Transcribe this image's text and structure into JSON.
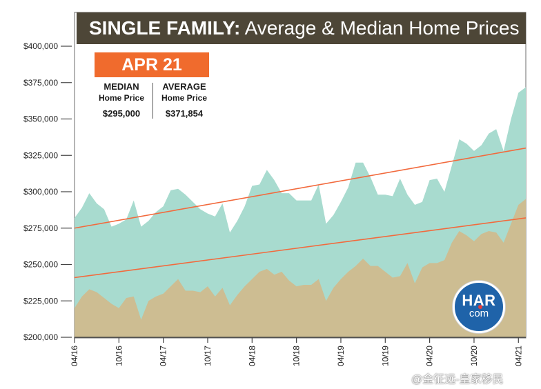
{
  "title": {
    "bold_part": "SINGLE FAMILY:",
    "light_part": " Average & Median Home Prices"
  },
  "badge": "APR 21",
  "stats": {
    "median": {
      "label": "MEDIAN",
      "sublabel": "Home Price",
      "value": "$295,000"
    },
    "average": {
      "label": "AVERAGE",
      "sublabel": "Home Price",
      "value": "$371,854"
    }
  },
  "logo": {
    "top": "HAR",
    "bottom": "com"
  },
  "watermark": "@金征远-皇家移民",
  "colors": {
    "average_area": "#a8dbcf",
    "median_area": "#cdbd92",
    "trend_line": "#f26a3d",
    "title_bg": "#4d4637",
    "badge_bg": "#f06b2d",
    "axis": "#444444"
  },
  "chart_data": {
    "type": "area",
    "title": "SINGLE FAMILY: Average & Median Home Prices",
    "xlabel": "",
    "ylabel": "",
    "ylim": [
      200000,
      400000
    ],
    "yticks": [
      200000,
      225000,
      250000,
      275000,
      300000,
      325000,
      350000,
      375000,
      400000
    ],
    "ytick_labels": [
      "$200,000",
      "$225,000",
      "$250,000",
      "$275,000",
      "$300,000",
      "$325,000",
      "$350,000",
      "$375,000",
      "$400,000"
    ],
    "x_tick_labels": [
      "04/16",
      "10/16",
      "04/17",
      "10/17",
      "04/18",
      "10/18",
      "04/19",
      "10/19",
      "04/20",
      "10/20",
      "04/21"
    ],
    "x_tick_index": [
      0,
      6,
      12,
      18,
      24,
      30,
      36,
      42,
      48,
      54,
      60
    ],
    "grid": false,
    "series": [
      {
        "key": "average",
        "values": [
          282000,
          289000,
          299000,
          292000,
          288000,
          276000,
          278000,
          281000,
          294000,
          276000,
          280000,
          286000,
          290000,
          301000,
          302000,
          298000,
          293000,
          288000,
          285000,
          283000,
          292000,
          272000,
          280000,
          290000,
          304000,
          305000,
          315000,
          308000,
          299000,
          299000,
          294000,
          294000,
          294000,
          305000,
          278000,
          284000,
          293000,
          303000,
          320000,
          320000,
          310000,
          298000,
          298000,
          297000,
          309000,
          298000,
          291000,
          293000,
          308000,
          309000,
          300000,
          318000,
          336000,
          333000,
          328000,
          332000,
          340000,
          343000,
          328000,
          350000,
          368000,
          371854
        ]
      },
      {
        "key": "median",
        "values": [
          220000,
          228000,
          233000,
          231000,
          227000,
          223000,
          220000,
          227000,
          228000,
          212000,
          225000,
          228000,
          230000,
          235000,
          240000,
          232000,
          232000,
          231000,
          235000,
          228000,
          234000,
          222000,
          229000,
          235000,
          240000,
          245000,
          247000,
          243000,
          245000,
          239000,
          235000,
          236000,
          236000,
          240000,
          225000,
          234000,
          240000,
          245000,
          249000,
          254000,
          249000,
          249000,
          245000,
          241000,
          242000,
          251000,
          237000,
          248000,
          251000,
          251000,
          253000,
          265000,
          273000,
          270000,
          266000,
          271000,
          273000,
          272000,
          265000,
          278000,
          291000,
          295000
        ]
      }
    ],
    "trend_lines": [
      {
        "of": "average",
        "start": 275000,
        "end": 330000
      },
      {
        "of": "median",
        "start": 241000,
        "end": 282000
      }
    ]
  }
}
